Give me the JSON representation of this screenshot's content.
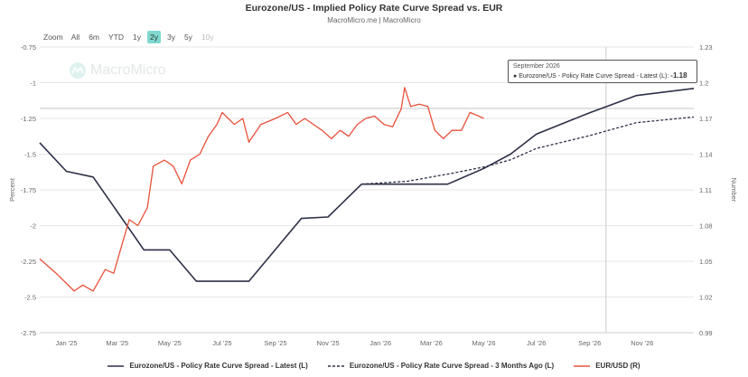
{
  "header": {
    "title": "Eurozone/US - Implied Policy Rate Curve Spread vs. EUR",
    "subtitle": "MacroMicro.me | MacroMicro"
  },
  "zoom": {
    "label": "Zoom",
    "options": [
      "All",
      "6m",
      "YTD",
      "1y",
      "2y",
      "3y",
      "5y",
      "10y"
    ],
    "active": "2y",
    "disabled": [
      "10y"
    ]
  },
  "watermark": {
    "text": "MacroMicro"
  },
  "tooltip": {
    "date": "September 2026",
    "series": "Eurozone/US - Policy Rate Curve Spread - Latest (L):",
    "value": "-1.18"
  },
  "colors": {
    "latest": "#2d2f48",
    "three_months_ago": "#2d2f48",
    "eurusd": "#e8503a"
  },
  "chart_data": {
    "type": "line",
    "x_ticks": [
      "Jan '25",
      "Mar '25",
      "May '25",
      "Jul '25",
      "Sep '25",
      "Nov '25",
      "Jan '26",
      "Mar '26",
      "May '26",
      "Jul '26",
      "Sep '26",
      "Nov '26"
    ],
    "xlim": [
      "2024-12-01",
      "2026-12-31"
    ],
    "left_axis": {
      "label": "Percent",
      "ylim": [
        -2.75,
        -0.75
      ],
      "ticks": [
        "-0.75",
        "-1",
        "-1.25",
        "-1.5",
        "-1.75",
        "-2",
        "-2.25",
        "-2.5",
        "-2.75"
      ]
    },
    "right_axis": {
      "label": "Number",
      "ylim": [
        0.99,
        1.23
      ],
      "ticks": [
        "1.23",
        "1.2",
        "1.17",
        "1.14",
        "1.11",
        "1.08",
        "1.05",
        "1.02",
        "0.99"
      ]
    },
    "series": [
      {
        "name": "Eurozone/US - Policy Rate Curve Spread - Latest (L)",
        "axis": "left",
        "style": "solid",
        "points": [
          [
            "2024-12-01",
            -1.42
          ],
          [
            "2025-01-01",
            -1.62
          ],
          [
            "2025-02-01",
            -1.66
          ],
          [
            "2025-04-01",
            -2.17
          ],
          [
            "2025-05-01",
            -2.17
          ],
          [
            "2025-06-01",
            -2.39
          ],
          [
            "2025-08-01",
            -2.39
          ],
          [
            "2025-10-01",
            -1.95
          ],
          [
            "2025-11-01",
            -1.94
          ],
          [
            "2025-12-10",
            -1.71
          ],
          [
            "2026-03-20",
            -1.71
          ],
          [
            "2026-05-01",
            -1.6
          ],
          [
            "2026-06-01",
            -1.5
          ],
          [
            "2026-07-01",
            -1.36
          ],
          [
            "2026-09-01",
            -1.21
          ],
          [
            "2026-10-25",
            -1.09
          ],
          [
            "2026-12-31",
            -1.04
          ]
        ]
      },
      {
        "name": "Eurozone/US - Policy Rate Curve Spread - 3 Months Ago (L)",
        "axis": "left",
        "style": "dashed",
        "points": [
          [
            "2025-12-10",
            -1.71
          ],
          [
            "2026-02-01",
            -1.69
          ],
          [
            "2026-03-20",
            -1.64
          ],
          [
            "2026-05-01",
            -1.59
          ],
          [
            "2026-06-01",
            -1.54
          ],
          [
            "2026-07-01",
            -1.46
          ],
          [
            "2026-09-01",
            -1.37
          ],
          [
            "2026-10-25",
            -1.28
          ],
          [
            "2026-12-31",
            -1.24
          ]
        ]
      },
      {
        "name": "EUR/USD (R)",
        "axis": "right",
        "style": "solid",
        "points": [
          [
            "2024-12-01",
            1.052
          ],
          [
            "2024-12-20",
            1.04
          ],
          [
            "2025-01-10",
            1.025
          ],
          [
            "2025-01-20",
            1.03
          ],
          [
            "2025-02-01",
            1.025
          ],
          [
            "2025-02-15",
            1.043
          ],
          [
            "2025-02-25",
            1.04
          ],
          [
            "2025-03-05",
            1.06
          ],
          [
            "2025-03-15",
            1.085
          ],
          [
            "2025-03-25",
            1.08
          ],
          [
            "2025-04-05",
            1.095
          ],
          [
            "2025-04-12",
            1.13
          ],
          [
            "2025-04-25",
            1.135
          ],
          [
            "2025-05-05",
            1.13
          ],
          [
            "2025-05-15",
            1.115
          ],
          [
            "2025-05-25",
            1.135
          ],
          [
            "2025-06-05",
            1.14
          ],
          [
            "2025-06-15",
            1.155
          ],
          [
            "2025-06-25",
            1.165
          ],
          [
            "2025-07-01",
            1.175
          ],
          [
            "2025-07-15",
            1.165
          ],
          [
            "2025-07-25",
            1.17
          ],
          [
            "2025-08-01",
            1.15
          ],
          [
            "2025-08-15",
            1.165
          ],
          [
            "2025-09-01",
            1.17
          ],
          [
            "2025-09-15",
            1.175
          ],
          [
            "2025-09-25",
            1.165
          ],
          [
            "2025-10-05",
            1.17
          ],
          [
            "2025-10-15",
            1.165
          ],
          [
            "2025-10-25",
            1.16
          ],
          [
            "2025-11-05",
            1.153
          ],
          [
            "2025-11-15",
            1.16
          ],
          [
            "2025-11-25",
            1.155
          ],
          [
            "2025-12-05",
            1.165
          ],
          [
            "2025-12-15",
            1.17
          ],
          [
            "2025-12-25",
            1.172
          ],
          [
            "2026-01-05",
            1.165
          ],
          [
            "2026-01-15",
            1.163
          ],
          [
            "2026-01-25",
            1.178
          ],
          [
            "2026-01-29",
            1.196
          ],
          [
            "2026-02-05",
            1.18
          ],
          [
            "2026-02-15",
            1.182
          ],
          [
            "2026-02-25",
            1.18
          ],
          [
            "2026-03-05",
            1.16
          ],
          [
            "2026-03-15",
            1.153
          ],
          [
            "2026-03-25",
            1.16
          ],
          [
            "2026-04-05",
            1.16
          ],
          [
            "2026-04-15",
            1.175
          ],
          [
            "2026-04-25",
            1.172
          ],
          [
            "2026-05-01",
            1.17
          ]
        ]
      }
    ],
    "crosshair_x": "2026-09-20"
  },
  "legend": {
    "items": [
      {
        "label": "Eurozone/US - Policy Rate Curve Spread - Latest (L)",
        "style": "solid",
        "color": "#2d2f48"
      },
      {
        "label": "Eurozone/US - Policy Rate Curve Spread - 3 Months Ago (L)",
        "style": "dashed",
        "color": "#2d2f48"
      },
      {
        "label": "EUR/USD (R)",
        "style": "solid",
        "color": "#e8503a"
      }
    ]
  }
}
